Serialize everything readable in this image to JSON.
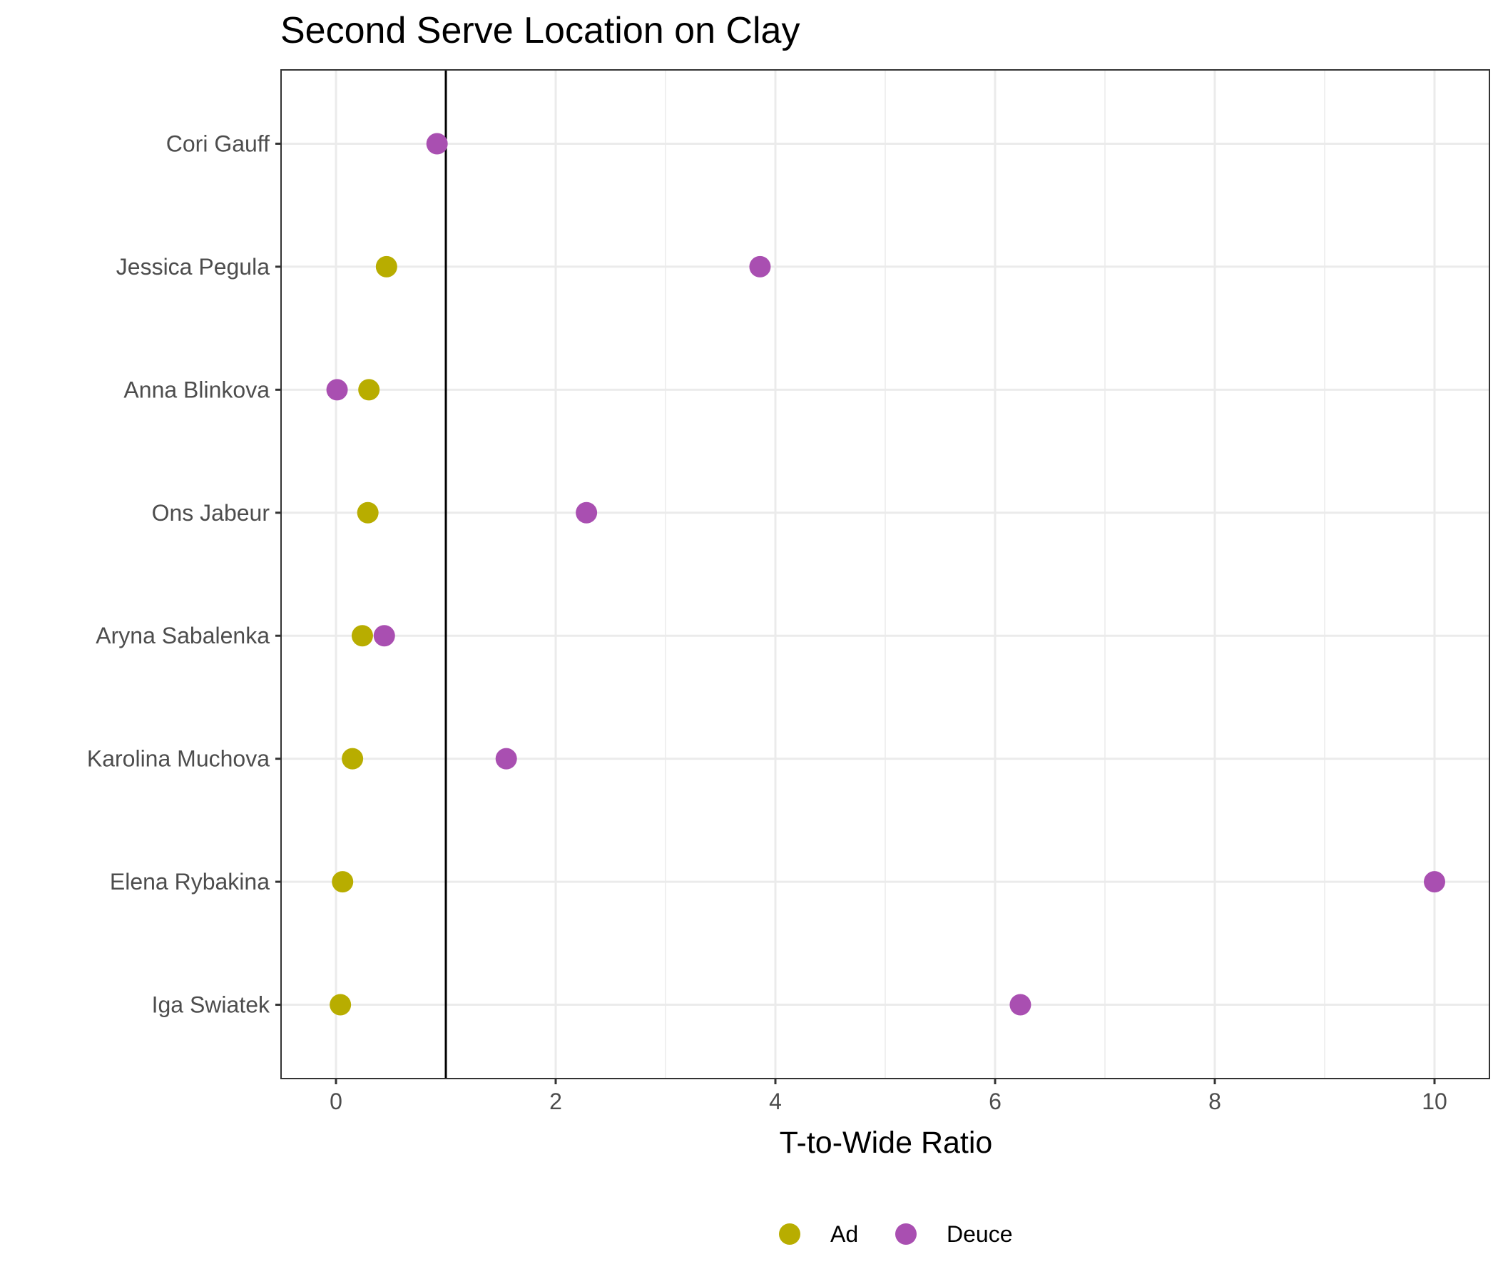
{
  "chart_data": {
    "type": "scatter",
    "title": "Second Serve Location on Clay",
    "xlabel": "T-to-Wide Ratio",
    "ylabel": "",
    "xlim": [
      -0.5,
      10.5
    ],
    "x_ticks": [
      0,
      2,
      4,
      6,
      8,
      10
    ],
    "reference_line_x": 1,
    "grid": true,
    "legend_position": "bottom",
    "categories": [
      "Cori Gauff",
      "Jessica Pegula",
      "Anna Blinkova",
      "Ons Jabeur",
      "Aryna Sabalenka",
      "Karolina Muchova",
      "Elena Rybakina",
      "Iga Swiatek"
    ],
    "series": [
      {
        "name": "Ad",
        "color": "#b8ad00",
        "values": [
          null,
          0.46,
          0.3,
          0.29,
          0.24,
          0.15,
          0.06,
          0.04
        ]
      },
      {
        "name": "Deuce",
        "color": "#a94fb1",
        "values": [
          0.92,
          3.86,
          0.01,
          2.28,
          0.44,
          1.55,
          10.0,
          6.23
        ]
      }
    ]
  }
}
